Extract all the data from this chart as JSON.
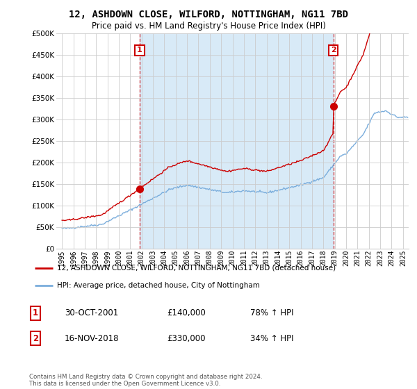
{
  "title": "12, ASHDOWN CLOSE, WILFORD, NOTTINGHAM, NG11 7BD",
  "subtitle": "Price paid vs. HM Land Registry's House Price Index (HPI)",
  "legend_line1": "12, ASHDOWN CLOSE, WILFORD, NOTTINGHAM, NG11 7BD (detached house)",
  "legend_line2": "HPI: Average price, detached house, City of Nottingham",
  "purchase1_label": "1",
  "purchase1_date": "30-OCT-2001",
  "purchase1_price": "£140,000",
  "purchase1_hpi": "78% ↑ HPI",
  "purchase2_label": "2",
  "purchase2_date": "16-NOV-2018",
  "purchase2_price": "£330,000",
  "purchase2_hpi": "34% ↑ HPI",
  "footnote": "Contains HM Land Registry data © Crown copyright and database right 2024.\nThis data is licensed under the Open Government Licence v3.0.",
  "price_color": "#cc0000",
  "hpi_color": "#7aaddc",
  "shade_color": "#d8eaf7",
  "marker_dot_color": "#cc0000",
  "purchase1_x": 2001.83,
  "purchase1_y": 140000,
  "purchase2_x": 2018.88,
  "purchase2_y": 330000,
  "ylim": [
    0,
    500000
  ],
  "xlim_left": 1994.5,
  "xlim_right": 2025.5,
  "yticks": [
    0,
    50000,
    100000,
    150000,
    200000,
    250000,
    300000,
    350000,
    400000,
    450000,
    500000
  ],
  "xticks": [
    1995,
    1996,
    1997,
    1998,
    1999,
    2000,
    2001,
    2002,
    2003,
    2004,
    2005,
    2006,
    2007,
    2008,
    2009,
    2010,
    2011,
    2012,
    2013,
    2014,
    2015,
    2016,
    2017,
    2018,
    2019,
    2020,
    2021,
    2022,
    2023,
    2024,
    2025
  ],
  "bg_color": "#ffffff",
  "grid_color": "#cccccc"
}
